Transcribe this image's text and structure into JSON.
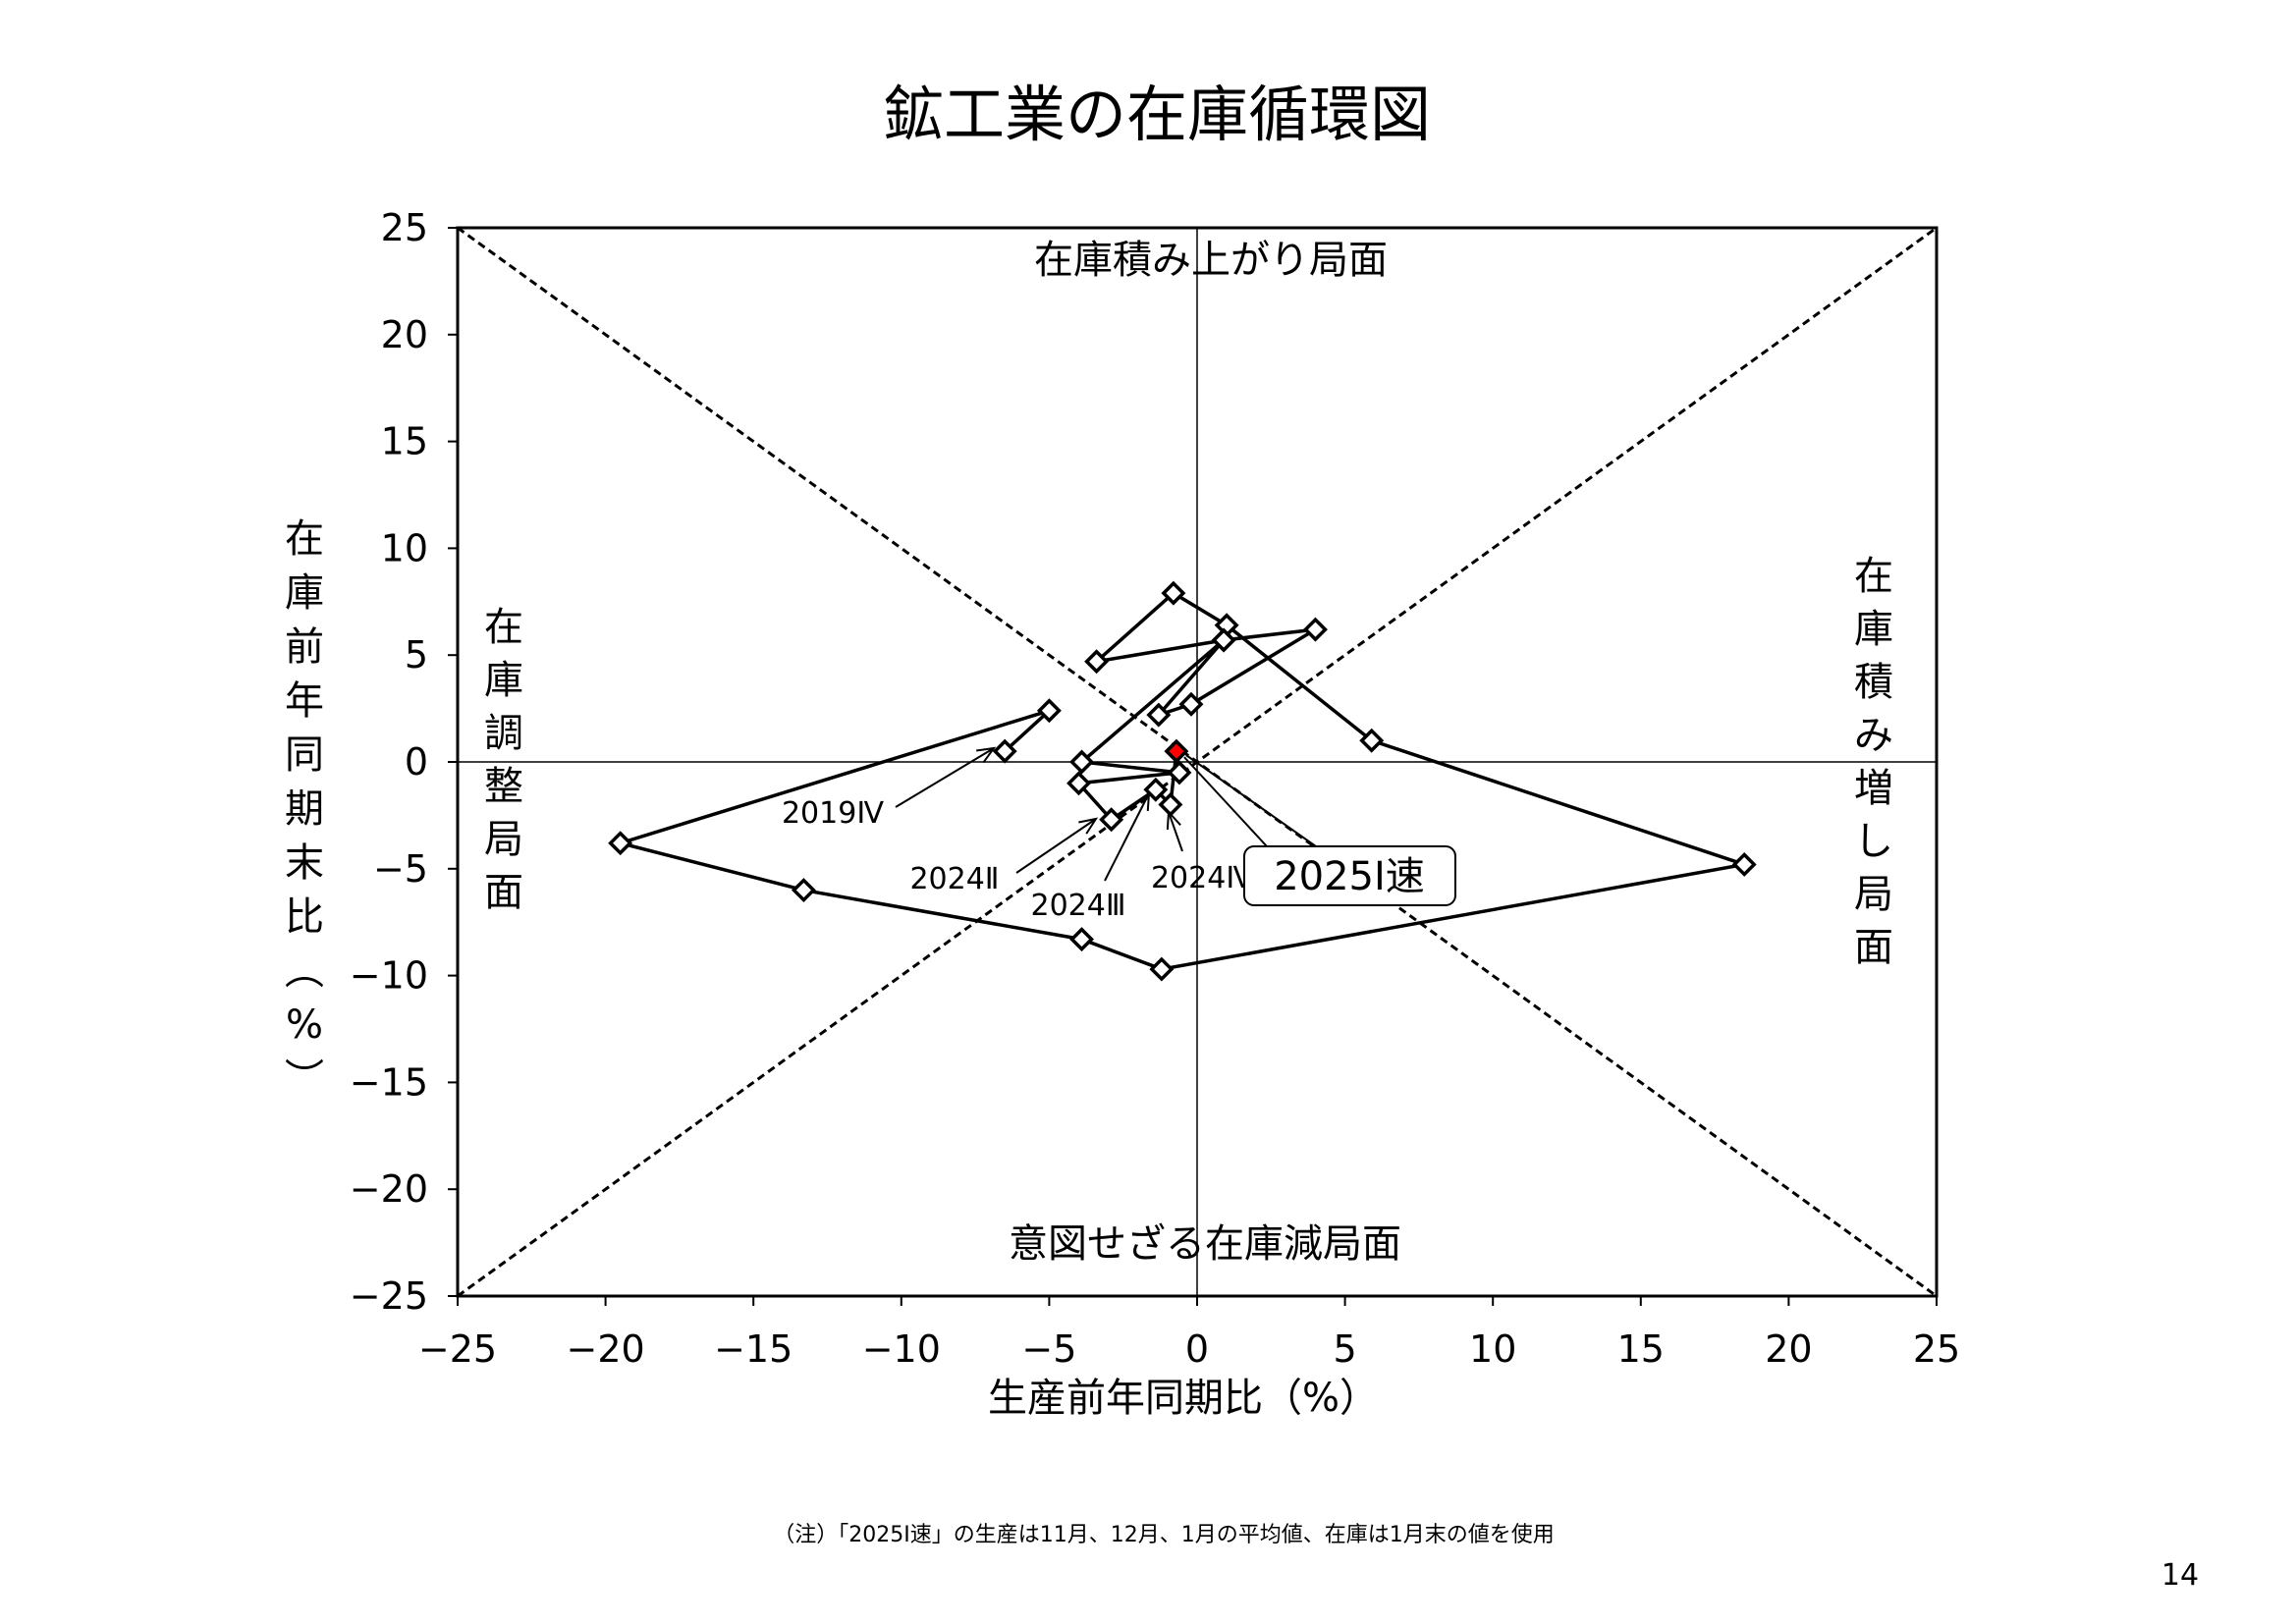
{
  "page_number": "14",
  "note": "（注）「2025Ⅰ速」の生産は11月、12月、1月の平均値、在庫は1月末の値を使用",
  "chart_data": {
    "type": "scatter",
    "title": "鉱工業の在庫循環図",
    "xlabel": "生産前年同期比（%）",
    "ylabel": "在庫前年同期末比（%）",
    "xlim": [
      -25,
      25
    ],
    "ylim": [
      -25,
      25
    ],
    "xticks": [
      "−25",
      "−20",
      "−15",
      "−10",
      "−5",
      "0",
      "5",
      "10",
      "15",
      "20",
      "25"
    ],
    "yticks": [
      "25",
      "20",
      "15",
      "10",
      "5",
      "0",
      "−5",
      "−10",
      "−15",
      "−20",
      "−25"
    ],
    "quadrant_labels": {
      "top": "在庫積み上がり局面",
      "bottom": "意図せざる在庫減局面",
      "left": "在庫調整局面",
      "right": "在庫積み増し局面"
    },
    "series": [
      {
        "name": "在庫循環",
        "points": [
          {
            "x": -6.5,
            "y": 0.5
          },
          {
            "x": -5.0,
            "y": 2.4
          },
          {
            "x": -19.5,
            "y": -3.8
          },
          {
            "x": -13.3,
            "y": -6.0
          },
          {
            "x": -3.9,
            "y": -8.3
          },
          {
            "x": -1.2,
            "y": -9.7
          },
          {
            "x": 18.5,
            "y": -4.8
          },
          {
            "x": 5.9,
            "y": 1.0
          },
          {
            "x": 1.0,
            "y": 6.4
          },
          {
            "x": -0.8,
            "y": 7.9
          },
          {
            "x": -3.4,
            "y": 4.7
          },
          {
            "x": 0.9,
            "y": 5.7
          },
          {
            "x": 4.0,
            "y": 6.2
          },
          {
            "x": -0.2,
            "y": 2.7
          },
          {
            "x": -1.3,
            "y": 2.2
          },
          {
            "x": 0.9,
            "y": 5.7
          },
          {
            "x": -3.9,
            "y": 0.0
          },
          {
            "x": -0.6,
            "y": -0.5
          },
          {
            "x": -4.0,
            "y": -1.0
          },
          {
            "x": -2.9,
            "y": -2.7
          },
          {
            "x": -1.4,
            "y": -1.3
          },
          {
            "x": -0.9,
            "y": -2.0
          },
          {
            "x": -0.7,
            "y": 0.5
          }
        ],
        "highlight_color": "#ff0000",
        "line_color": "#000000"
      }
    ],
    "annotations": [
      {
        "label": "2019Ⅳ",
        "x": -6.5,
        "y": 0.5
      },
      {
        "label": "2024Ⅱ",
        "x": -2.9,
        "y": -2.7
      },
      {
        "label": "2024Ⅲ",
        "x": -1.4,
        "y": -1.3
      },
      {
        "label": "2024Ⅳ",
        "x": -0.9,
        "y": -2.0
      },
      {
        "label": "2025Ⅰ速",
        "x": -0.7,
        "y": 0.5
      }
    ]
  }
}
